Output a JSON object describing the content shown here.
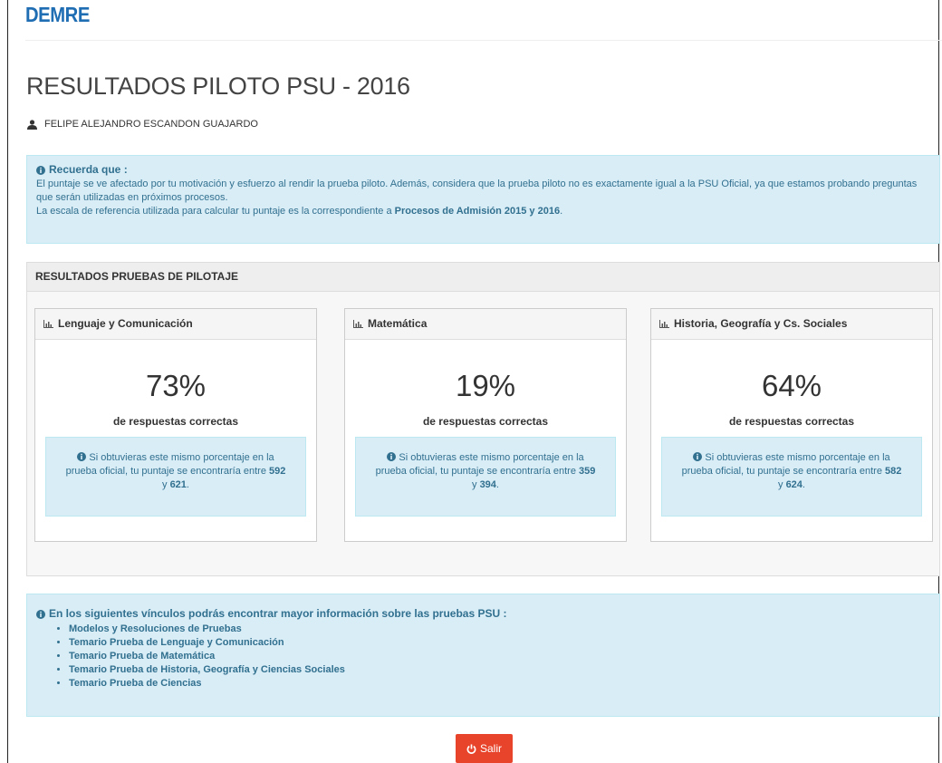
{
  "header": {
    "logo": "DEMRE"
  },
  "page": {
    "title": "RESULTADOS PILOTO PSU - 2016",
    "user": "FELIPE ALEJANDRO ESCANDON GUAJARDO"
  },
  "notice": {
    "heading": "Recuerda que :",
    "paragraph": "El puntaje se ve afectado por tu motivación y esfuerzo al rendir la prueba piloto. Además, considera que la prueba piloto no es exactamente igual a la PSU Oficial, ya que estamos probando preguntas que serán utilizadas en próximos procesos.",
    "scale_text": "La escala de referencia utilizada para calcular tu puntaje es la correspondiente a",
    "scale_bold": "Procesos de Admisión 2015 y 2016",
    "scale_end": "."
  },
  "results": {
    "heading": "RESULTADOS PRUEBAS DE PILOTAJE",
    "cards": [
      {
        "subject": "Lenguaje y Comunicación",
        "percent": "73%",
        "caption": "de respuestas correctas",
        "info": "Si obtuvieras este mismo porcentaje en la prueba oficial, tu puntaje se encontraría entre",
        "min": "592",
        "joiner": "y",
        "max": "621",
        "end": "."
      },
      {
        "subject": "Matemática",
        "percent": "19%",
        "caption": "de respuestas correctas",
        "info": "Si obtuvieras este mismo porcentaje en la prueba oficial, tu puntaje se encontraría entre",
        "min": "359",
        "joiner": "y",
        "max": "394",
        "end": "."
      },
      {
        "subject": "Historia, Geografía y Cs. Sociales",
        "percent": "64%",
        "caption": "de respuestas correctas",
        "info": "Si obtuvieras este mismo porcentaje en la prueba oficial, tu puntaje se encontraría entre",
        "min": "582",
        "joiner": "y",
        "max": "624",
        "end": "."
      }
    ]
  },
  "links": {
    "heading": "En los siguientes vínculos podrás encontrar mayor información sobre las pruebas PSU :",
    "items": [
      "Modelos y Resoluciones de Pruebas",
      "Temario Prueba de Lenguaje y Comunicación",
      "Temario Prueba de Matemática",
      "Temario Prueba de Historia, Geografía y Ciencias Sociales",
      "Temario Prueba de Ciencias"
    ]
  },
  "button": {
    "label": "Salir"
  }
}
